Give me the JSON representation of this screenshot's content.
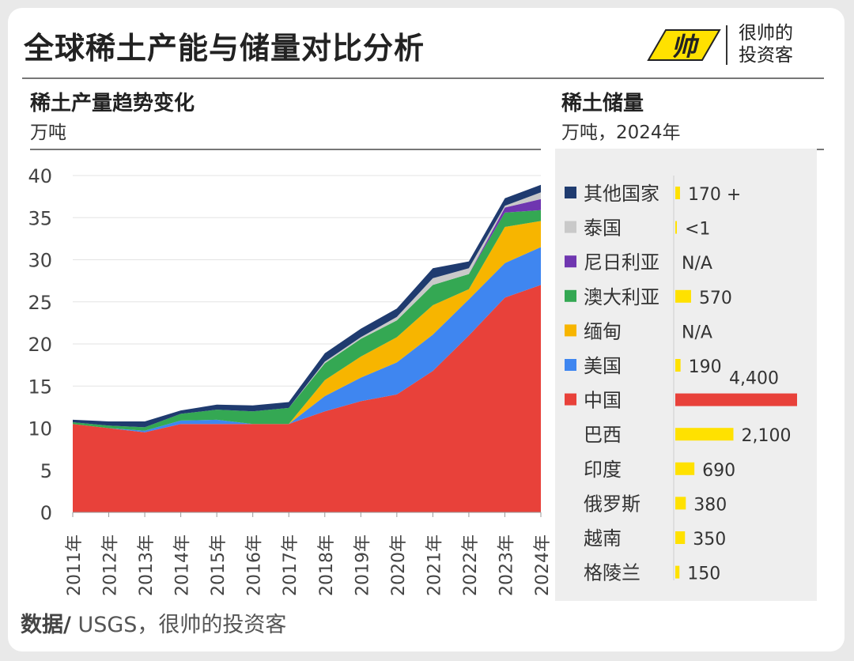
{
  "title": "全球稀土产能与储量对比分析",
  "brand": {
    "logo_text": "帅",
    "line1": "很帅的",
    "line2": "投资客"
  },
  "left_panel": {
    "title": "稀土产量趋势变化",
    "unit": "万吨"
  },
  "right_panel": {
    "title": "稀土储量",
    "unit": "万吨，2024年"
  },
  "source": {
    "label": "数据/",
    "text": "USGS，很帅的投资客"
  },
  "colors": {
    "china": "#e8413a",
    "usa": "#3f86f0",
    "myanmar": "#f7b500",
    "australia": "#34a853",
    "nigeria": "#6f36b0",
    "thailand": "#c9c9c9",
    "other": "#1f3b6f",
    "reserve_bar": "#ffe100",
    "panel_bg": "#eeeeee"
  },
  "chart_data": [
    {
      "type": "area",
      "stacked": true,
      "title": "稀土产量趋势变化",
      "ylabel": "万吨",
      "ylim": [
        0,
        40
      ],
      "yticks": [
        0,
        5,
        10,
        15,
        20,
        25,
        30,
        35,
        40
      ],
      "grid": true,
      "x": [
        "2011年",
        "2012年",
        "2013年",
        "2014年",
        "2015年",
        "2016年",
        "2017年",
        "2018年",
        "2019年",
        "2020年",
        "2021年",
        "2022年",
        "2023年",
        "2024年"
      ],
      "series": [
        {
          "key": "china",
          "values": [
            10.5,
            10.0,
            9.5,
            10.5,
            10.5,
            10.5,
            10.5,
            12.0,
            13.2,
            14.0,
            16.8,
            21.0,
            25.5,
            27.0
          ]
        },
        {
          "key": "usa",
          "values": [
            0,
            0,
            0.2,
            0.4,
            0.5,
            0,
            0,
            1.8,
            2.8,
            3.8,
            4.3,
            4.3,
            4.1,
            4.5
          ]
        },
        {
          "key": "myanmar",
          "values": [
            0,
            0,
            0,
            0,
            0,
            0,
            0,
            1.9,
            2.5,
            3.0,
            3.5,
            1.2,
            4.3,
            3.1
          ]
        },
        {
          "key": "australia",
          "values": [
            0.2,
            0.3,
            0.4,
            0.8,
            1.2,
            1.5,
            1.9,
            2.0,
            2.1,
            2.0,
            2.4,
            1.8,
            1.7,
            1.3
          ]
        },
        {
          "key": "nigeria",
          "values": [
            0,
            0,
            0,
            0,
            0,
            0,
            0,
            0,
            0,
            0,
            0,
            0,
            0.6,
            1.3
          ]
        },
        {
          "key": "thailand",
          "values": [
            0,
            0,
            0,
            0,
            0,
            0,
            0,
            0.2,
            0.2,
            0.4,
            0.8,
            0.7,
            0.2,
            0.8
          ]
        },
        {
          "key": "other",
          "values": [
            0.3,
            0.5,
            0.7,
            0.4,
            0.6,
            0.7,
            0.7,
            1.0,
            1.0,
            1.0,
            1.2,
            0.8,
            0.9,
            0.9
          ]
        }
      ]
    },
    {
      "type": "bar",
      "orientation": "horizontal",
      "title": "稀土储量",
      "ylabel": "万吨，2024年",
      "legend": [
        {
          "name": "其他国家",
          "color_key": "other",
          "value": 170,
          "label": "170 +"
        },
        {
          "name": "泰国",
          "color_key": "thailand",
          "value": 0.5,
          "label": "<1"
        },
        {
          "name": "尼日利亚",
          "color_key": "nigeria",
          "value": 0,
          "label": "N/A"
        },
        {
          "name": "澳大利亚",
          "color_key": "australia",
          "value": 570,
          "label": "570"
        },
        {
          "name": "缅甸",
          "color_key": "myanmar",
          "value": 0,
          "label": "N/A"
        },
        {
          "name": "美国",
          "color_key": "usa",
          "value": 190,
          "label": "190"
        },
        {
          "name": "中国",
          "color_key": "china",
          "value": 4400,
          "label": "4,400",
          "label_above": true
        }
      ],
      "others": [
        {
          "name": "巴西",
          "value": 2100,
          "label": "2,100"
        },
        {
          "name": "印度",
          "value": 690,
          "label": "690"
        },
        {
          "name": "俄罗斯",
          "value": 380,
          "label": "380"
        },
        {
          "name": "越南",
          "value": 350,
          "label": "350"
        },
        {
          "name": "格陵兰",
          "value": 150,
          "label": "150"
        }
      ]
    }
  ]
}
